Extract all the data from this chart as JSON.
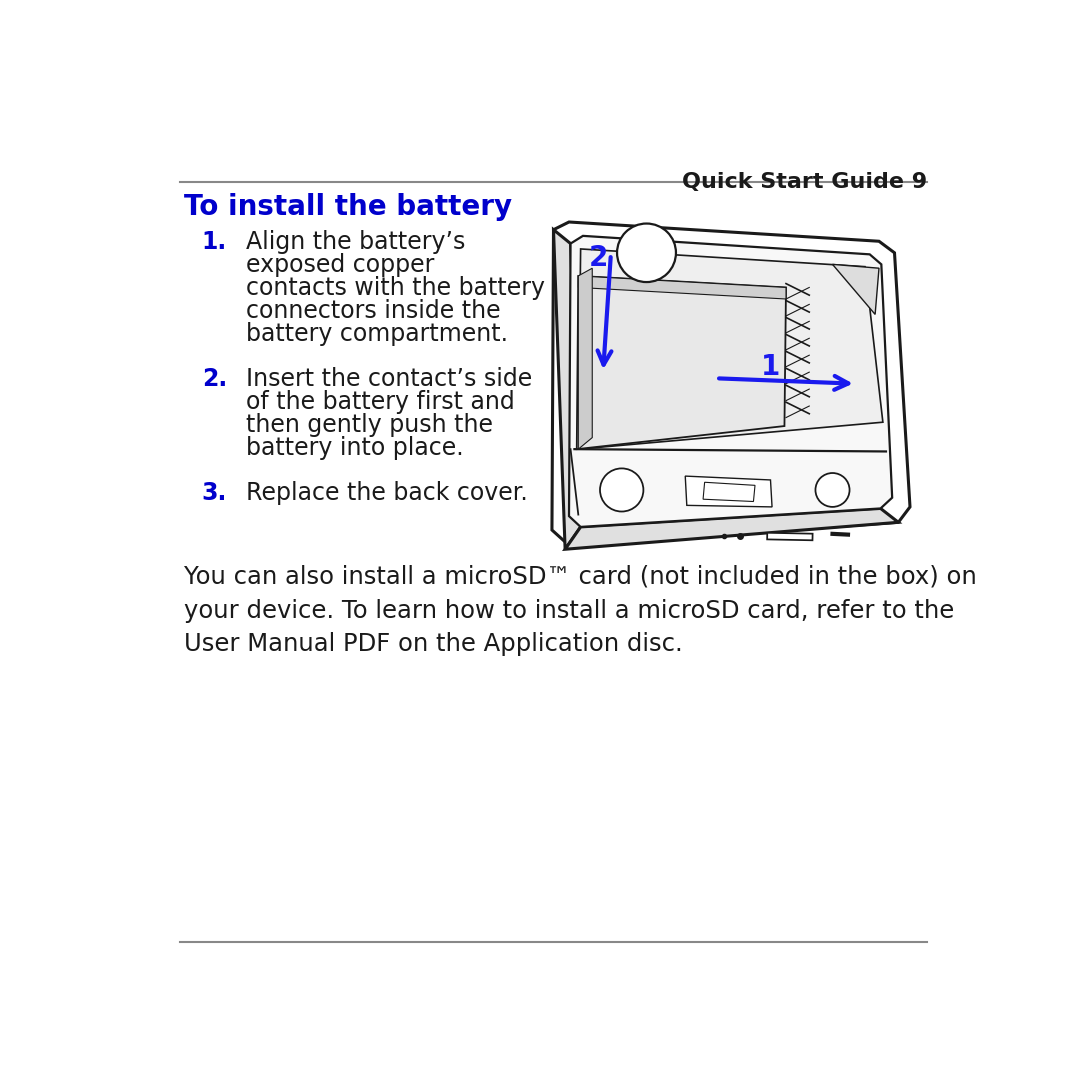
{
  "bg_color": "#ffffff",
  "header_text": "Quick Start Guide 9",
  "header_color": "#1a1a1a",
  "line_color": "#888888",
  "title": "To install the battery",
  "title_color": "#0000cc",
  "blue_color": "#1a1aee",
  "step_num_color": "#0000cc",
  "step_text_color": "#1a1a1a",
  "steps": [
    {
      "num": "1.",
      "lines": [
        "Align the battery’s",
        "exposed copper",
        "contacts with the battery",
        "connectors inside the",
        "battery compartment."
      ]
    },
    {
      "num": "2.",
      "lines": [
        "Insert the contact’s side",
        "of the battery first and",
        "then gently push the",
        "battery into place."
      ]
    },
    {
      "num": "3.",
      "lines": [
        "Replace the back cover."
      ]
    }
  ],
  "body_lines": [
    "You can also install a microSD™ card (not included in the box) on",
    "your device. To learn how to install a microSD card, refer to the",
    "User Manual PDF on the Application disc."
  ],
  "body_color": "#1a1a1a"
}
